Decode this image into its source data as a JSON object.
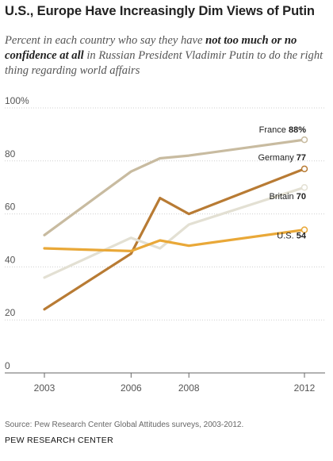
{
  "header": {
    "title": "U.S., Europe Have Increasingly Dim Views of Putin",
    "subtitle_pre": "Percent in each country who say they have ",
    "subtitle_bold": "not too much or no confidence at all",
    "subtitle_post": " in Russian President Vladimir Putin to do the right thing regarding world affairs"
  },
  "footer": {
    "source": "Source: Pew Research Center Global Attitudes surveys, 2003-2012.",
    "brand": "PEW RESEARCH CENTER"
  },
  "chart_data": {
    "type": "line",
    "title": "U.S., Europe Have Increasingly Dim Views of Putin",
    "xlabel": "",
    "ylabel": "",
    "x_ticks": [
      "2003",
      "2006",
      "2008",
      "2012"
    ],
    "y_ticks": [
      "0",
      "20",
      "40",
      "60",
      "80",
      "100%"
    ],
    "ylim": [
      0,
      100
    ],
    "xlim": [
      2003,
      2012
    ],
    "grid": true,
    "series": [
      {
        "name": "France",
        "label_value": "88%",
        "color": "#c8bba0",
        "points": [
          {
            "x": 2003,
            "y": 52
          },
          {
            "x": 2006,
            "y": 76
          },
          {
            "x": 2007,
            "y": 81
          },
          {
            "x": 2008,
            "y": 82
          },
          {
            "x": 2012,
            "y": 88
          }
        ]
      },
      {
        "name": "Germany",
        "label_value": "77",
        "color": "#b87b34",
        "points": [
          {
            "x": 2003,
            "y": 24
          },
          {
            "x": 2006,
            "y": 45
          },
          {
            "x": 2007,
            "y": 66
          },
          {
            "x": 2008,
            "y": 60
          },
          {
            "x": 2012,
            "y": 77
          }
        ]
      },
      {
        "name": "Britain",
        "label_value": "70",
        "color": "#e3e0d3",
        "points": [
          {
            "x": 2003,
            "y": 36
          },
          {
            "x": 2006,
            "y": 51
          },
          {
            "x": 2007,
            "y": 47
          },
          {
            "x": 2008,
            "y": 56
          },
          {
            "x": 2012,
            "y": 70
          }
        ]
      },
      {
        "name": "U.S.",
        "label_value": "54",
        "color": "#e9a838",
        "points": [
          {
            "x": 2003,
            "y": 47
          },
          {
            "x": 2006,
            "y": 46
          },
          {
            "x": 2007,
            "y": 50
          },
          {
            "x": 2008,
            "y": 48
          },
          {
            "x": 2012,
            "y": 54
          }
        ]
      }
    ]
  }
}
